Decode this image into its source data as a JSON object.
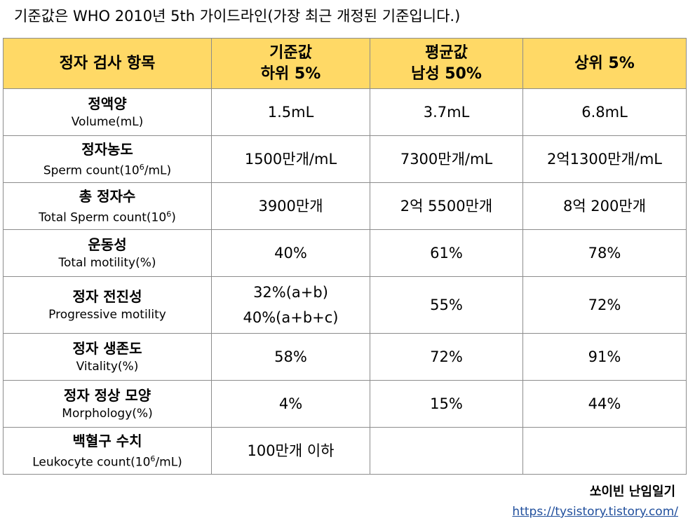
{
  "caption": "기준값은 WHO 2010년 5th 가이드라인(가장 최근 개정된 기준입니다.)",
  "table": {
    "header": {
      "item": "정자 검사 항목",
      "col1_line1": "기준값",
      "col1_line2": "하위 5%",
      "col2_line1": "평균값",
      "col2_line2": "남성 50%",
      "col3": "상위 5%"
    },
    "header_color": "#ffd966",
    "rows": [
      {
        "ko": "정액양",
        "en": "Volume(mL)",
        "low": "1.5mL",
        "mid": "3.7mL",
        "high": "6.8mL"
      },
      {
        "ko": "정자농도",
        "en_pre": "Sperm count(10",
        "en_sup": "6",
        "en_post": "/mL)",
        "low": "1500만개/mL",
        "mid": "7300만개/mL",
        "high": "2억1300만개/mL"
      },
      {
        "ko": "총 정자수",
        "en_pre": "Total Sperm count(10",
        "en_sup": "6",
        "en_post": ")",
        "low": "3900만개",
        "mid": "2억 5500만개",
        "high": "8억 200만개"
      },
      {
        "ko": "운동성",
        "en": "Total motility(%)",
        "low": "40%",
        "mid": "61%",
        "high": "78%"
      },
      {
        "ko": "정자 전진성",
        "en": "Progressive motility",
        "low_line1": "32%(a+b)",
        "low_line2": "40%(a+b+c)",
        "mid": "55%",
        "high": "72%"
      },
      {
        "ko": "정자 생존도",
        "en": "Vitality(%)",
        "low": "58%",
        "mid": "72%",
        "high": "91%"
      },
      {
        "ko": "정자 정상 모양",
        "en": "Morphology(%)",
        "low": "4%",
        "mid": "15%",
        "high": "44%"
      },
      {
        "ko": "백혈구 수치",
        "en_pre": "Leukocyte count(10",
        "en_sup": "6",
        "en_post": "/mL)",
        "low": "100만개 이하",
        "mid": "",
        "high": ""
      }
    ]
  },
  "footer": {
    "blog_name": "쏘이빈 난임일기",
    "link": "https://tysistory.tistory.com/"
  }
}
